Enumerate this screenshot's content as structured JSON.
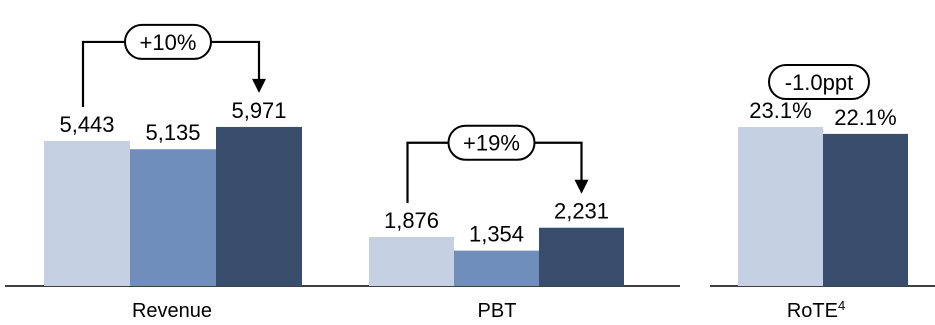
{
  "chart_data": [
    {
      "type": "bar",
      "category": "Revenue",
      "values": [
        5443,
        5135,
        5971
      ],
      "labels": [
        "5,443",
        "5,135",
        "5,971"
      ],
      "comparison": "+10%",
      "colors": [
        "#c5d0e2",
        "#6f8fba",
        "#394d6c"
      ]
    },
    {
      "type": "bar",
      "category": "PBT",
      "values": [
        1876,
        1354,
        2231
      ],
      "labels": [
        "1,876",
        "1,354",
        "2,231"
      ],
      "comparison": "+19%",
      "colors": [
        "#c5d0e2",
        "#6f8fba",
        "#394d6c"
      ]
    },
    {
      "type": "bar",
      "category": "RoTE",
      "category_sup": "4",
      "values": [
        23.1,
        22.1
      ],
      "labels": [
        "23.1%",
        "22.1%"
      ],
      "comparison": "-1.0ppt",
      "colors": [
        "#c5d0e2",
        "#394d6c"
      ]
    }
  ]
}
